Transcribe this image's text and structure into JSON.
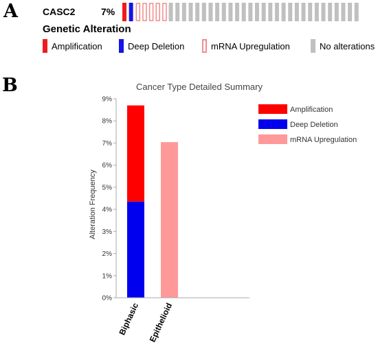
{
  "panels": {
    "a": "A",
    "b": "B"
  },
  "oncoprint": {
    "gene": "CASC2",
    "percent": "7%",
    "legend_title": "Genetic Alteration",
    "legend": [
      {
        "label": "Amplification",
        "color": "#ee1c1c",
        "style": "fill"
      },
      {
        "label": "Deep Deletion",
        "color": "#1515e6",
        "style": "fill"
      },
      {
        "label": "mRNA Upregulation",
        "color": "#f08c8c",
        "style": "outline"
      },
      {
        "label": "No alterations",
        "color": "#c0c0c0",
        "style": "fill"
      }
    ],
    "samples": [
      "amp",
      "del",
      "mrna",
      "mrna",
      "mrna",
      "mrna",
      "mrna",
      "none",
      "none",
      "none",
      "none",
      "none",
      "none",
      "none",
      "none",
      "none",
      "none",
      "none",
      "none",
      "none",
      "none",
      "none",
      "none",
      "none",
      "none",
      "none",
      "none",
      "none",
      "none",
      "none",
      "none",
      "none",
      "none",
      "none",
      "none",
      "none"
    ]
  },
  "chart_data": {
    "type": "bar",
    "stacked": true,
    "title": "Cancer Type Detailed Summary",
    "ylabel": "Alteration Frequency",
    "xlabel": "",
    "categories": [
      "Biphasic",
      "Epithelioid"
    ],
    "series": [
      {
        "name": "Deep Deletion",
        "color": "#0000ee",
        "values": [
          4.35,
          0
        ]
      },
      {
        "name": "Amplification",
        "color": "#ff0000",
        "values": [
          4.35,
          0
        ]
      },
      {
        "name": "mRNA Upregulation",
        "color": "#ff9999",
        "values": [
          0,
          7.04
        ]
      }
    ],
    "legend_order": [
      "Amplification",
      "Deep Deletion",
      "mRNA Upregulation"
    ],
    "legend_position": "right",
    "ylim": [
      0,
      9
    ],
    "yticks": [
      "0%",
      "1%",
      "2%",
      "3%",
      "4%",
      "5%",
      "6%",
      "7%",
      "8%",
      "9%"
    ],
    "grid": false
  }
}
